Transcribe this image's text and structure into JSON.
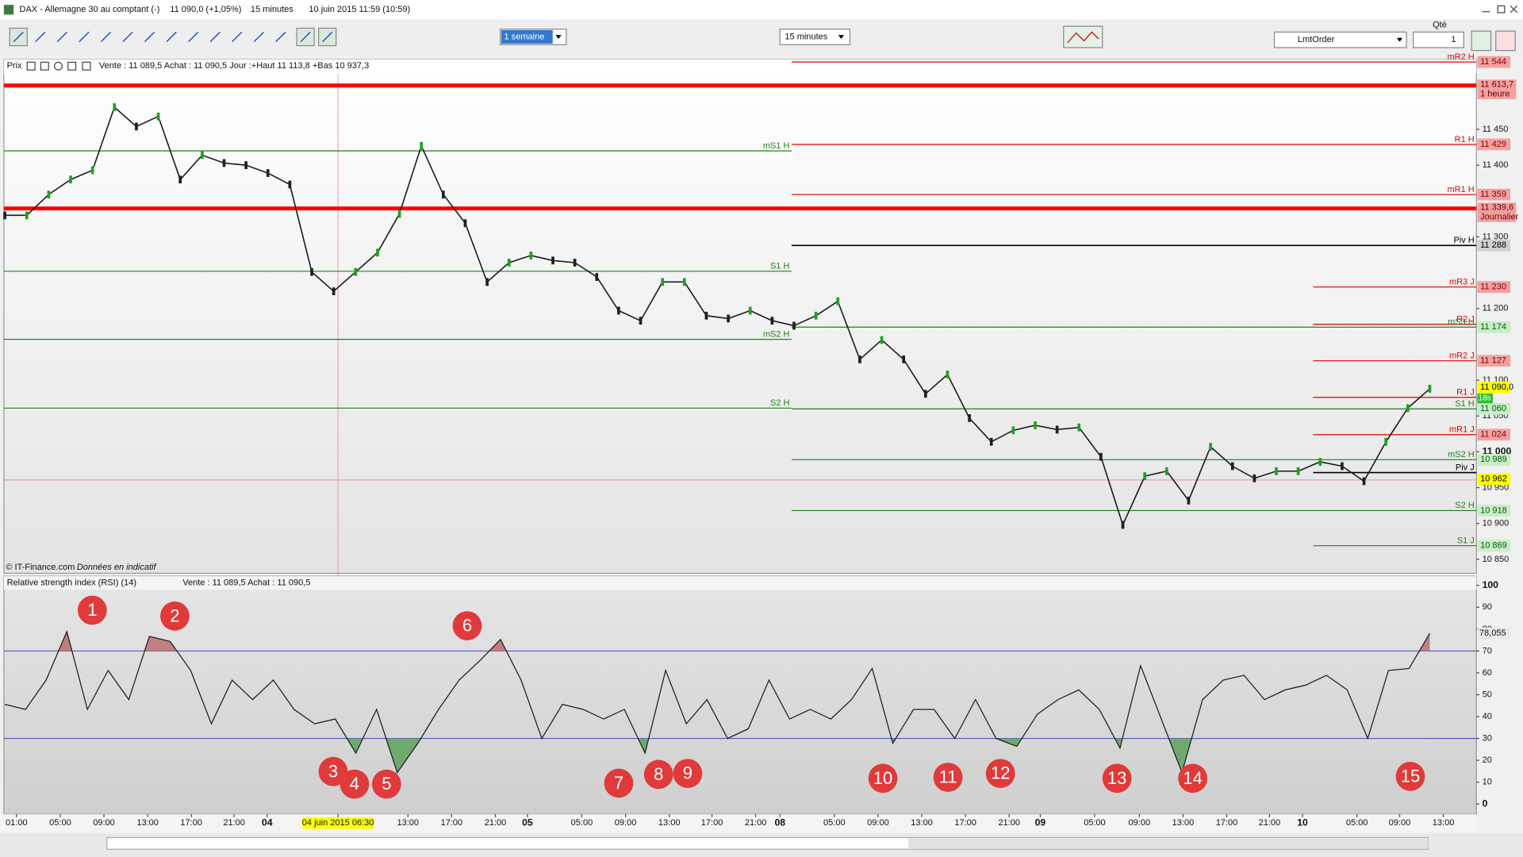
{
  "window": {
    "instrument": "DAX - Allemagne 30 au comptant (-)",
    "last": "11 090,0 (+1,05%)",
    "interval": "15 minutes",
    "datetime": "10 juin 2015 11:59 (10:59)"
  },
  "toolbar": {
    "period": "1 semaine",
    "interval": "15 minutes",
    "order_type": "LmtOrder",
    "qty_label": "Qté",
    "qty": "1"
  },
  "price_panel": {
    "label": "Prix",
    "info": "Vente : 11 089,5 Achat : 11 090,5 Jour :+Haut 11 113,8 +Bas 10 937,3",
    "credit": "© IT-Finance.com",
    "credit_note": "Données en indicatif",
    "ylim": [
      10830,
      11560
    ],
    "yticks": [
      {
        "value": 11450,
        "label": "11 450"
      },
      {
        "value": 11400,
        "label": "11 400"
      },
      {
        "value": 11300,
        "label": "11 300"
      },
      {
        "value": 11200,
        "label": "11 200"
      },
      {
        "value": 11100,
        "label": "11 100"
      },
      {
        "value": 11050,
        "label": "11 050"
      },
      {
        "value": 11000,
        "label": "11 000"
      },
      {
        "value": 10950,
        "label": "10 950"
      },
      {
        "value": 10900,
        "label": "10 900"
      },
      {
        "value": 10850,
        "label": "10 850"
      }
    ],
    "levels": [
      {
        "name": "mR2 H",
        "value": 11544,
        "color": "#e00000"
      },
      {
        "name": "mS1 H",
        "value": 11420,
        "color": "#208020"
      },
      {
        "name": "R1 H",
        "value": 11429,
        "color": "#e00000"
      },
      {
        "name": "mR1 H",
        "value": 11359,
        "color": "#e00000"
      },
      {
        "name": "S1 H",
        "value": 11252,
        "color": "#208020"
      },
      {
        "name": "Piv H",
        "value": 11288,
        "color": "#000000"
      },
      {
        "name": "mS2 H",
        "value": 11157,
        "color": "#208020"
      },
      {
        "name": "S2 H",
        "value": 11061,
        "color": "#208020"
      },
      {
        "name": "mR3 J",
        "value": 11230,
        "color": "#e00000"
      },
      {
        "name": "R2 J",
        "value": 11178,
        "color": "#e00000"
      },
      {
        "name": "mS3 H",
        "value": 11174,
        "color": "#208020"
      },
      {
        "name": "mR2 J",
        "value": 11127,
        "color": "#e00000"
      },
      {
        "name": "R1 J",
        "value": 11076,
        "color": "#e00000"
      },
      {
        "name": "S1 H",
        "value": 11060,
        "color": "#208020"
      },
      {
        "name": "mR1 J",
        "value": 11024,
        "color": "#e00000"
      },
      {
        "name": "mS2 H",
        "value": 10989,
        "color": "#208020"
      },
      {
        "name": "Piv J",
        "value": 10971,
        "color": "#000000"
      },
      {
        "name": "S2 H",
        "value": 10918,
        "color": "#208020"
      },
      {
        "name": "S1 J",
        "value": 10869,
        "color": "#208020"
      }
    ],
    "strong_lines": [
      {
        "value": 11613.7,
        "label": "11 613,7",
        "note": "1 heure"
      },
      {
        "value": 11339.6,
        "label": "11 339,6",
        "note": "Journalier"
      }
    ],
    "tags": [
      {
        "value": 11544,
        "label": "11 544",
        "color": "red"
      },
      {
        "value": 11429,
        "label": "11 429",
        "color": "red"
      },
      {
        "value": 11359,
        "label": "11 359",
        "color": "red"
      },
      {
        "value": 11288,
        "label": "11 288",
        "color": "gray"
      },
      {
        "value": 11230,
        "label": "11 230",
        "color": "red"
      },
      {
        "value": 11174,
        "label": "11 174",
        "color": "green"
      },
      {
        "value": 11127,
        "label": "11 127",
        "color": "red"
      },
      {
        "value": 11090,
        "label": "11 090,0",
        "color": "yellow"
      },
      {
        "value": 11060,
        "label": "11 060",
        "color": "green"
      },
      {
        "value": 11024,
        "label": "11 024",
        "color": "red"
      },
      {
        "value": 10989,
        "label": "10 989",
        "color": "green"
      },
      {
        "value": 10962,
        "label": "10 962",
        "color": "yellow"
      },
      {
        "value": 10918,
        "label": "10 918",
        "color": "green"
      },
      {
        "value": 10869,
        "label": "10 869",
        "color": "green"
      }
    ],
    "countdown": "18s",
    "series": {
      "name": "DAX",
      "color": "#1a1a1a",
      "values": [
        11330,
        11330,
        11359,
        11380,
        11393,
        11481,
        11454,
        11468,
        11380,
        11414,
        11403,
        11400,
        11389,
        11373,
        11251,
        11224,
        11251,
        11278,
        11332,
        11427,
        11359,
        11319,
        11237,
        11264,
        11274,
        11267,
        11264,
        11244,
        11197,
        11183,
        11237,
        11237,
        11190,
        11186,
        11197,
        11183,
        11176,
        11190,
        11210,
        11129,
        11156,
        11129,
        11081,
        11108,
        11047,
        11014,
        11030,
        11037,
        11031,
        11034,
        10993,
        10898,
        10966,
        10973,
        10932,
        11007,
        10980,
        10963,
        10973,
        10973,
        10986,
        10980,
        10959,
        11014,
        11061,
        11088
      ]
    }
  },
  "rsi_panel": {
    "label": "Relative strength index (RSI) (14)",
    "info": "Vente : 11 089,5 Achat : 11 090,5",
    "ylim": [
      0,
      100
    ],
    "yticks": [
      100,
      90,
      80,
      70,
      60,
      50,
      40,
      30,
      20,
      10,
      0
    ],
    "levels": [
      70,
      30
    ],
    "last": {
      "value": 78.055,
      "label": "78,055"
    },
    "series": {
      "name": "RSI",
      "color": "#1a1a1a",
      "values": [
        45.6,
        43.3,
        56.7,
        78.9,
        43.3,
        61.1,
        47.8,
        76.7,
        74.4,
        61.1,
        36.7,
        56.7,
        47.8,
        56.7,
        43.3,
        36.7,
        38.9,
        23.3,
        43.3,
        14.4,
        27.8,
        43.3,
        56.7,
        65.6,
        75.3,
        56.7,
        30,
        45.6,
        43.3,
        38.9,
        43.3,
        23.3,
        61.1,
        36.7,
        47.8,
        30,
        34.4,
        56.7,
        38.9,
        43.3,
        38.9,
        47.8,
        62,
        27.8,
        43.3,
        43.3,
        30,
        47.8,
        30,
        26.4,
        41.1,
        47.8,
        52.2,
        43.3,
        25.6,
        63.3,
        38.9,
        14.4,
        47.8,
        56.7,
        58.9,
        47.8,
        52.2,
        54.4,
        58.9,
        52.2,
        30,
        61.1,
        62,
        78.1
      ]
    },
    "markers": [
      "1",
      "2",
      "3",
      "4",
      "5",
      "6",
      "7",
      "8",
      "9",
      "10",
      "11",
      "12",
      "13",
      "14",
      "15"
    ]
  },
  "time_axis": {
    "labels": [
      "01:00",
      "05:00",
      "09:00",
      "13:00",
      "17:00",
      "21:00",
      "04",
      "04 juin 2015 06:30",
      "13:00",
      "17:00",
      "21:00",
      "05",
      "05:00",
      "09:00",
      "13:00",
      "17:00",
      "21:00",
      "08",
      "05:00",
      "09:00",
      "13:00",
      "17:00",
      "21:00",
      "09",
      "05:00",
      "09:00",
      "13:00",
      "17:00",
      "21:00",
      "10",
      "05:00",
      "09:00",
      "13:00"
    ]
  }
}
